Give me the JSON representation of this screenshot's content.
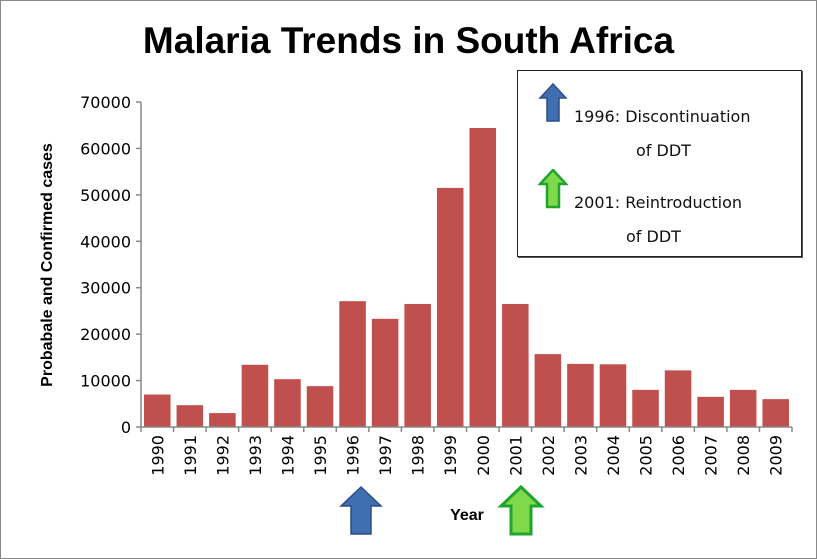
{
  "chart_data": {
    "type": "bar",
    "title": "Malaria Trends in South Africa",
    "xlabel": "Year",
    "ylabel": "Probabale and Confirmed cases",
    "ylim": [
      0,
      70000
    ],
    "yticks": [
      0,
      10000,
      20000,
      30000,
      40000,
      50000,
      60000,
      70000
    ],
    "grid": false,
    "categories": [
      "1990",
      "1991",
      "1992",
      "1993",
      "1994",
      "1995",
      "1996",
      "1997",
      "1998",
      "1999",
      "2000",
      "2001",
      "2002",
      "2003",
      "2004",
      "2005",
      "2006",
      "2007",
      "2008",
      "2009"
    ],
    "values": [
      7000,
      4700,
      3000,
      13400,
      10300,
      8800,
      27100,
      23300,
      26500,
      51500,
      64400,
      26500,
      15700,
      13600,
      13500,
      8000,
      12200,
      6500,
      8000,
      6000
    ],
    "bar_color": "#C0504D",
    "legend_placement": "top-right",
    "annotations": [
      {
        "year": "1996",
        "line1": "1996:  Discontinuation",
        "line2": "of DDT",
        "color": "#3F6FB0"
      },
      {
        "year": "2001",
        "line1": "2001: Reintroduction",
        "line2": "of DDT",
        "color": "#2DB83A"
      }
    ]
  }
}
